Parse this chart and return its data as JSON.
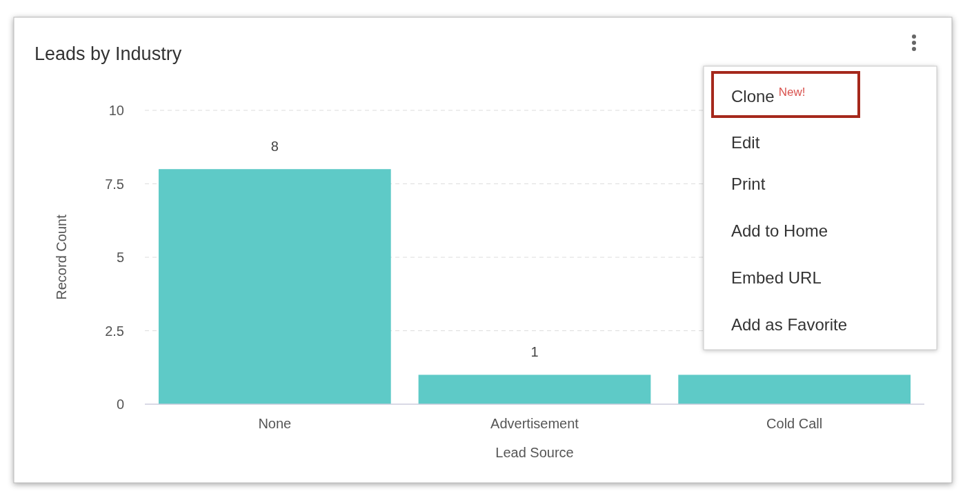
{
  "chart_data": {
    "type": "bar",
    "title": "Leads by Industry",
    "xlabel": "Lead Source",
    "ylabel": "Record Count",
    "categories": [
      "None",
      "Advertisement",
      "Cold Call"
    ],
    "values": [
      8,
      1,
      1
    ],
    "color": "#5ecac7",
    "value_labels": [
      "8",
      "1",
      null
    ],
    "ylim": [
      0,
      10
    ],
    "yticks": [
      0,
      {
        "value": 2.5,
        "label": "2.5"
      },
      5,
      {
        "value": 7.5,
        "label": "7.5"
      },
      10
    ],
    "grid": "y",
    "annotations": [
      "Clone $^{New!}$",
      "Edit",
      "Print",
      "Add to Home",
      "Embed URL",
      "Add as Favorite"
    ]
  }
}
